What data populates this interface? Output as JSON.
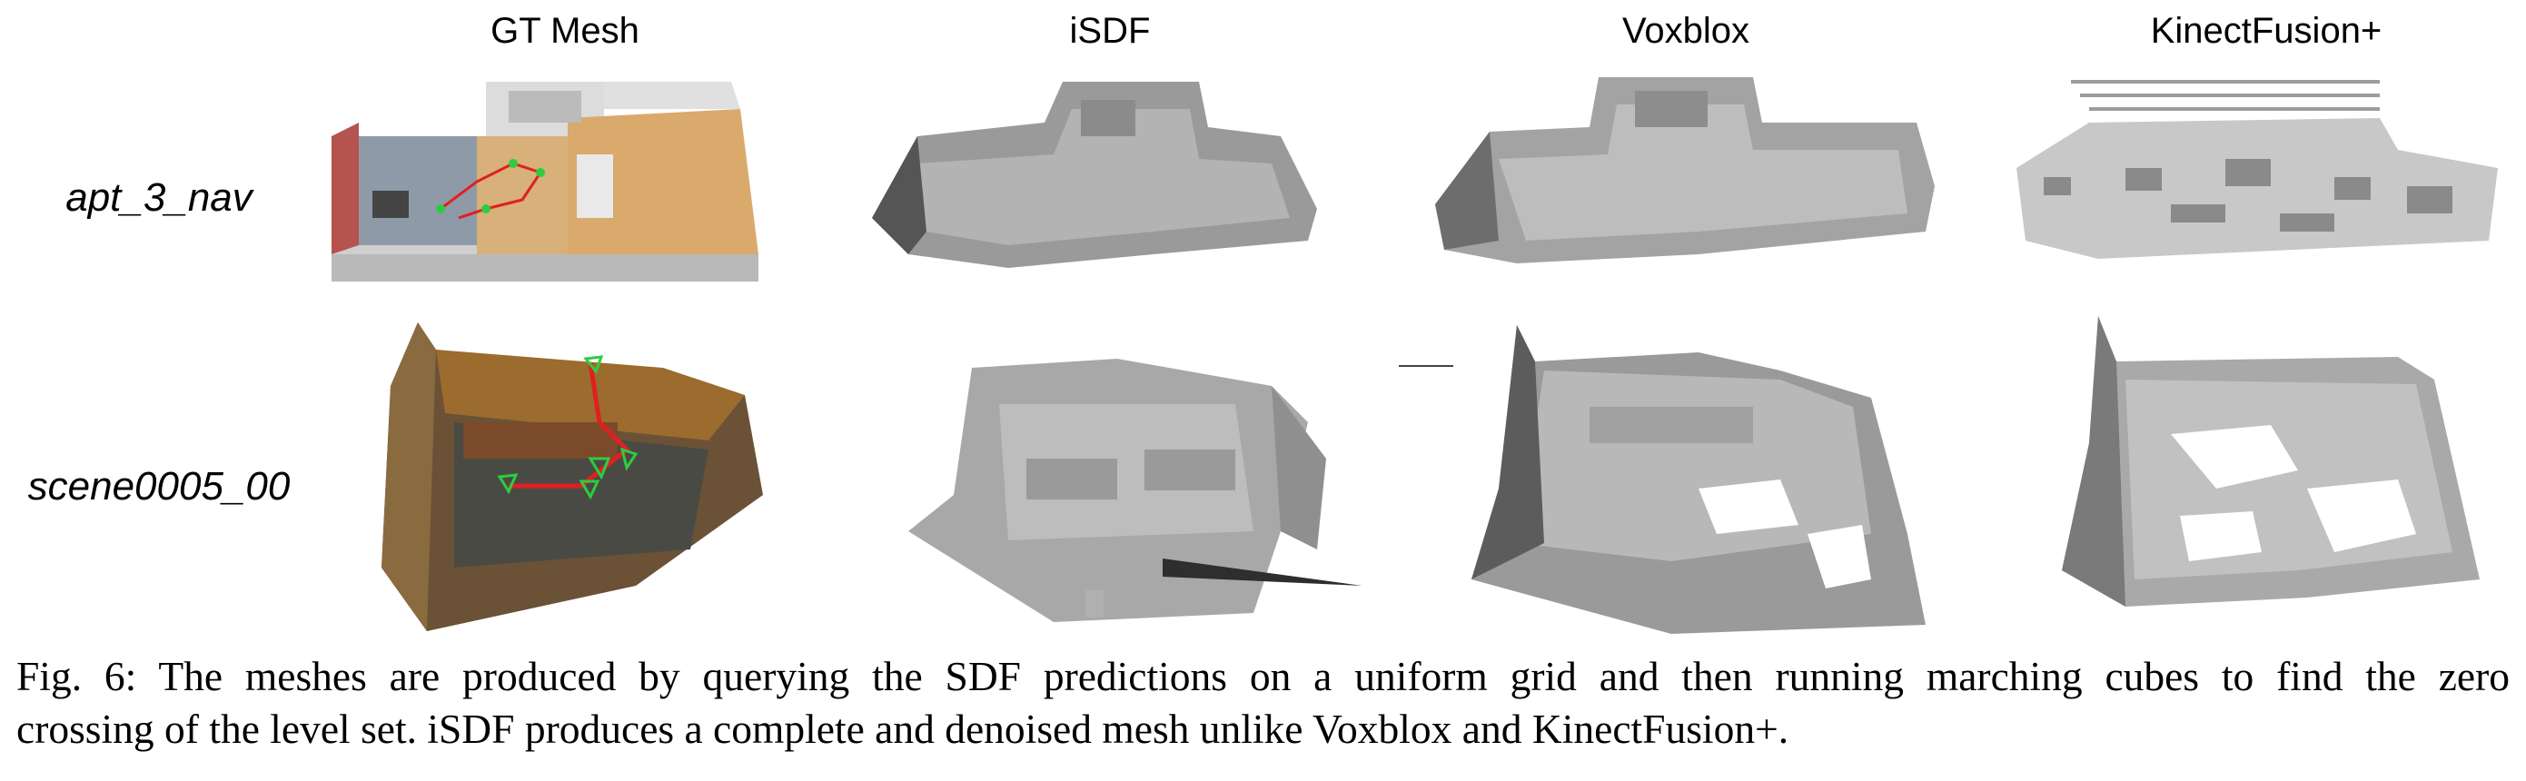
{
  "figure": {
    "columns": [
      "GT Mesh",
      "iSDF",
      "Voxblox",
      "KinectFusion+"
    ],
    "rows": [
      "apt_3_nav",
      "scene0005_00"
    ],
    "caption": {
      "line1": "Fig. 6: The meshes are produced by querying the SDF predictions on a uniform grid and then running marching cubes to find the zero",
      "line2": "crossing of the level set. iSDF produces a complete and denoised mesh unlike Voxblox and KinectFusion+."
    }
  }
}
